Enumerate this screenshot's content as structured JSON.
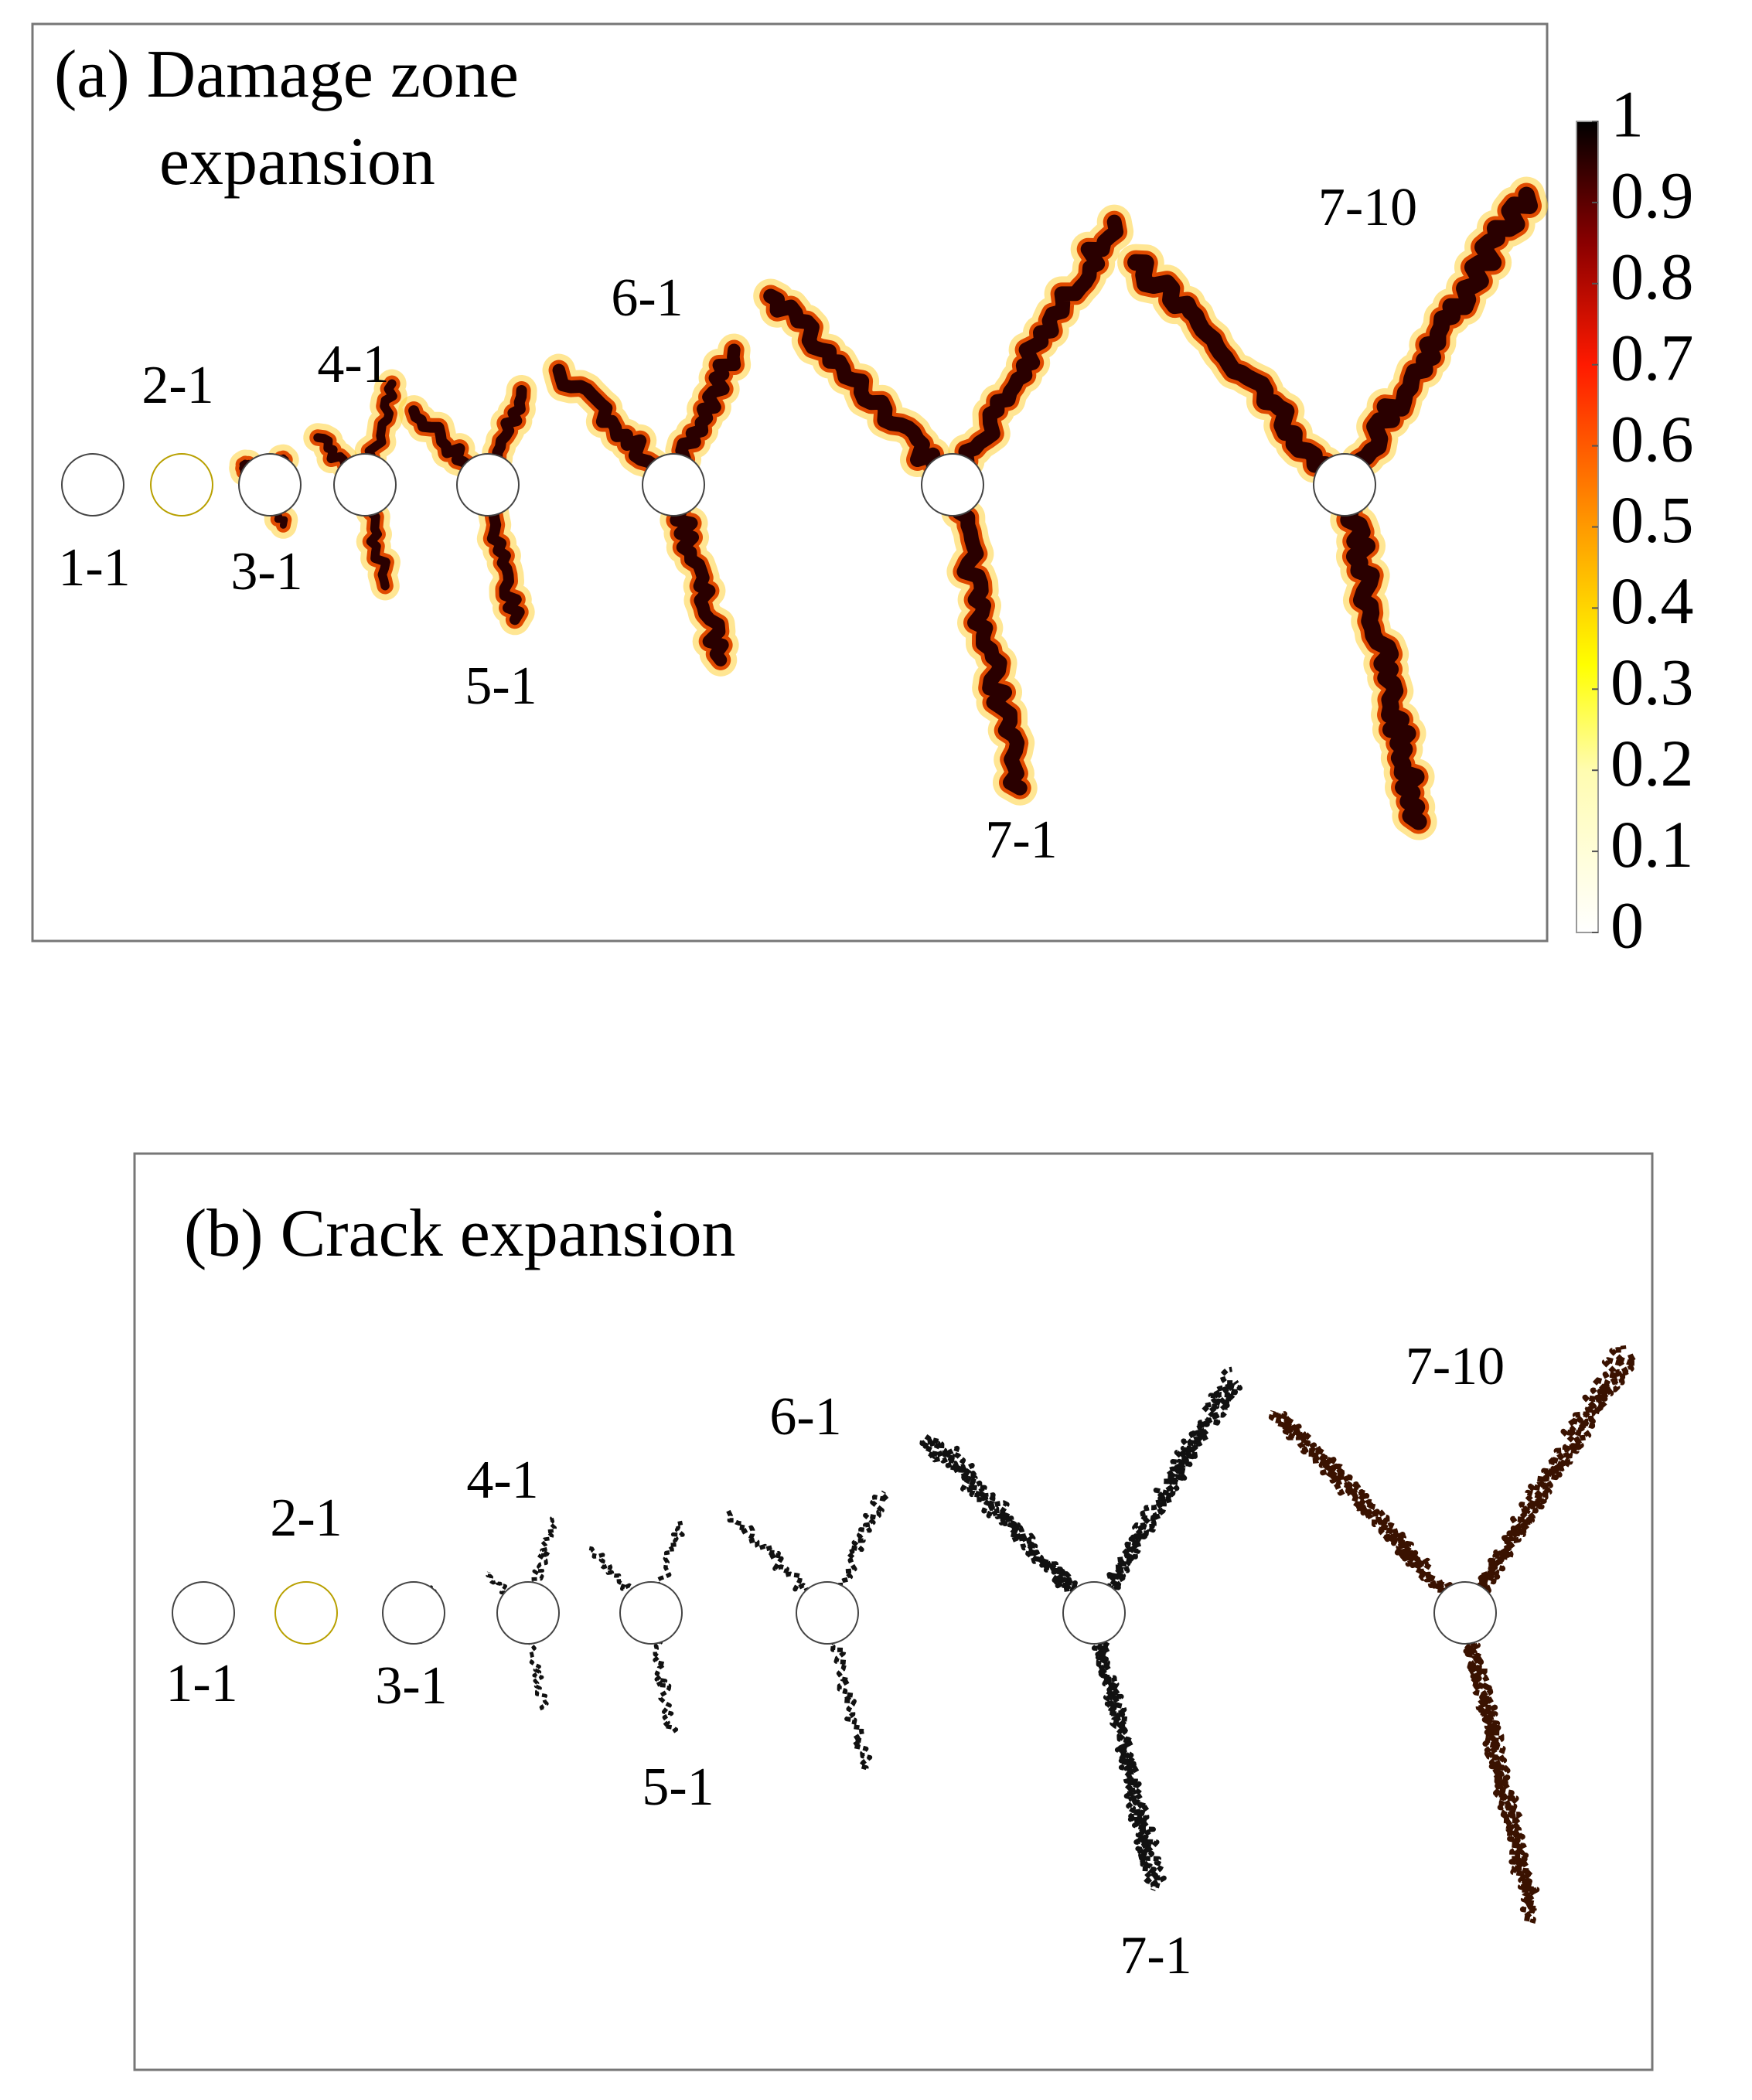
{
  "panels": [
    {
      "title_lines": [
        "(a) Damage zone",
        "expansion"
      ],
      "labels": [
        "1-1",
        "2-1",
        "3-1",
        "4-1",
        "5-1",
        "6-1",
        "7-1",
        "7-10"
      ]
    },
    {
      "title_lines": [
        "(b) Crack expansion"
      ],
      "labels": [
        "1-1",
        "2-1",
        "3-1",
        "4-1",
        "5-1",
        "6-1",
        "7-1",
        "7-10"
      ]
    }
  ],
  "colorbar": {
    "ticks": [
      0,
      0.1,
      0.2,
      0.3,
      0.4,
      0.5,
      0.6,
      0.7,
      0.8,
      0.9,
      1
    ]
  }
}
